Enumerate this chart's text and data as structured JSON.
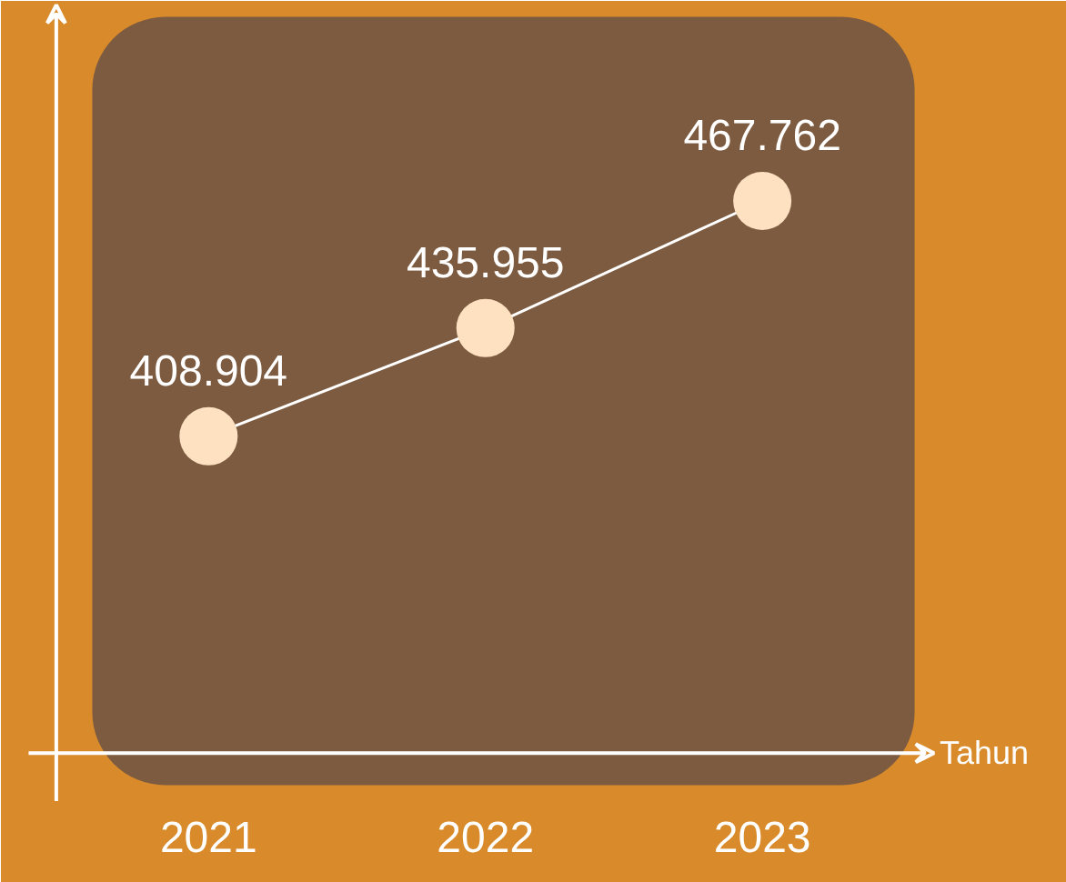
{
  "chart_data": {
    "type": "line",
    "xlabel": "Tahun",
    "categories": [
      "2021",
      "2022",
      "2023"
    ],
    "series": [
      {
        "color": "#ffffff",
        "values": [
          408.904,
          435.955,
          467.762
        ]
      }
    ],
    "data_labels": true,
    "marker": "circle",
    "line_style": "solid",
    "grid": false
  }
}
